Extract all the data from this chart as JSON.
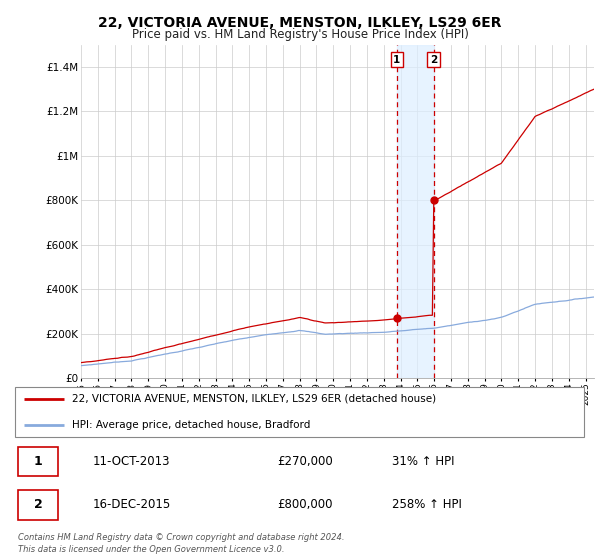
{
  "title": "22, VICTORIA AVENUE, MENSTON, ILKLEY, LS29 6ER",
  "subtitle": "Price paid vs. HM Land Registry's House Price Index (HPI)",
  "legend_line1": "22, VICTORIA AVENUE, MENSTON, ILKLEY, LS29 6ER (detached house)",
  "legend_line2": "HPI: Average price, detached house, Bradford",
  "transaction1_label": "1",
  "transaction1_date": "11-OCT-2013",
  "transaction1_price": "£270,000",
  "transaction1_hpi": "31% ↑ HPI",
  "transaction2_label": "2",
  "transaction2_date": "16-DEC-2015",
  "transaction2_price": "£800,000",
  "transaction2_hpi": "258% ↑ HPI",
  "footer": "Contains HM Land Registry data © Crown copyright and database right 2024.\nThis data is licensed under the Open Government Licence v3.0.",
  "ylim": [
    0,
    1500000
  ],
  "yticks": [
    0,
    200000,
    400000,
    600000,
    800000,
    1000000,
    1200000,
    1400000
  ],
  "ytick_labels": [
    "£0",
    "£200K",
    "£400K",
    "£600K",
    "£800K",
    "£1M",
    "£1.2M",
    "£1.4M"
  ],
  "color_property": "#cc0000",
  "color_hpi": "#88aadd",
  "shaded_color": "#ddeeff",
  "vline_color": "#cc0000",
  "transaction1_x": 2013.78,
  "transaction2_x": 2015.96,
  "transaction1_y": 270000,
  "transaction2_y": 800000,
  "xmin": 1995,
  "xmax": 2025.5,
  "xticks": [
    1995,
    1996,
    1997,
    1998,
    1999,
    2000,
    2001,
    2002,
    2003,
    2004,
    2005,
    2006,
    2007,
    2008,
    2009,
    2010,
    2011,
    2012,
    2013,
    2014,
    2015,
    2016,
    2017,
    2018,
    2019,
    2020,
    2021,
    2022,
    2023,
    2024,
    2025
  ]
}
